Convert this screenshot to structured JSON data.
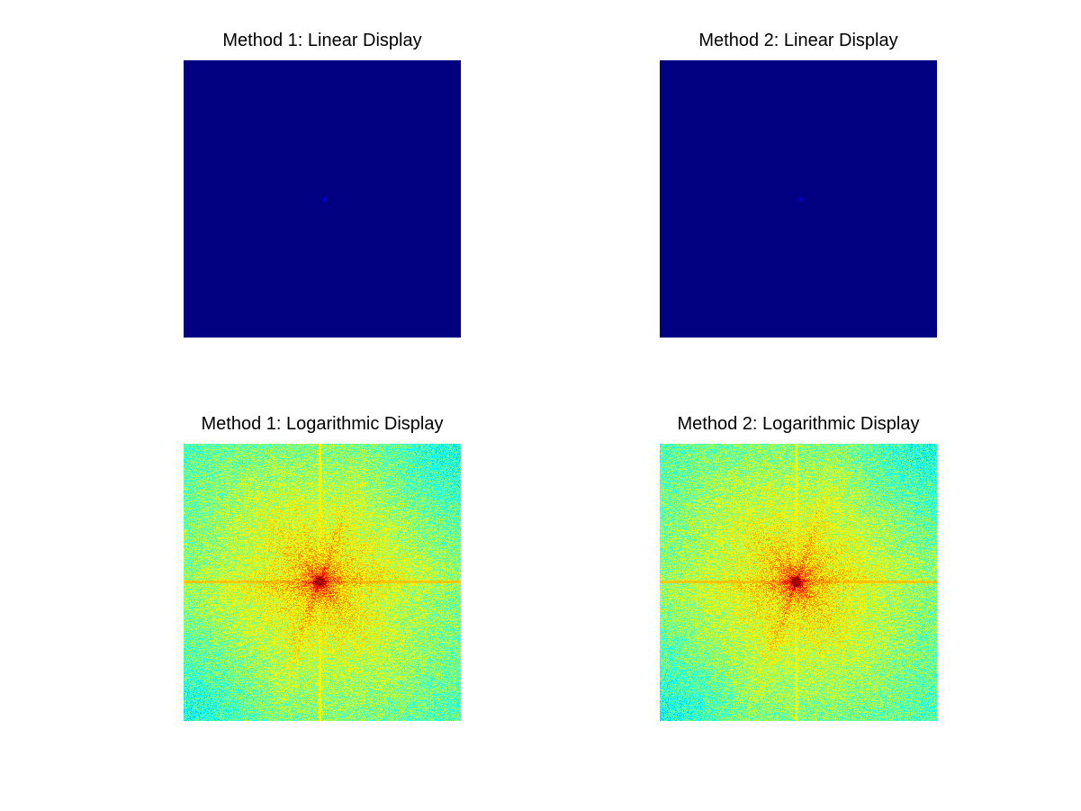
{
  "figure": {
    "background": "#ffffff",
    "colormap": "jet",
    "panels": [
      {
        "id": "tl",
        "title": "Method 1: Linear Display",
        "scale": "linear"
      },
      {
        "id": "tr",
        "title": "Method 2: Linear Display",
        "scale": "linear"
      },
      {
        "id": "bl",
        "title": "Method 1: Logarithmic Display",
        "scale": "logarithmic"
      },
      {
        "id": "br",
        "title": "Method 2: Logarithmic Display",
        "scale": "logarithmic"
      }
    ]
  }
}
